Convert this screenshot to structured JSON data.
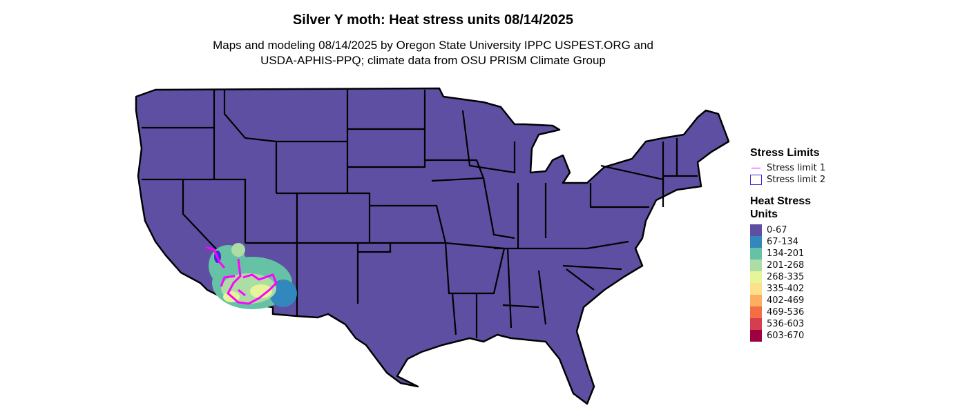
{
  "title": "Silver Y moth: Heat stress units 08/14/2025",
  "subtitle_lines": [
    "Maps and modeling 08/14/2025 by Oregon State University IPPC USPEST.ORG and",
    "USDA-APHIS-PPQ; climate data from OSU PRISM Climate Group"
  ],
  "legend": {
    "stress_limits_title": "Stress Limits",
    "stress_limits": [
      {
        "label": "Stress limit 1",
        "color": "#ff00ff",
        "symbol": "line"
      },
      {
        "label": "Stress limit 2",
        "color": "#3a2bd8",
        "symbol": "box"
      }
    ],
    "heat_title_lines": [
      "Heat Stress",
      "Units"
    ],
    "classes": [
      {
        "label": "0-67",
        "color": "#5e4fa2"
      },
      {
        "label": "67-134",
        "color": "#3288bd"
      },
      {
        "label": "134-201",
        "color": "#66c2a5"
      },
      {
        "label": "201-268",
        "color": "#abdda4"
      },
      {
        "label": "268-335",
        "color": "#e6f598"
      },
      {
        "label": "335-402",
        "color": "#fee08b"
      },
      {
        "label": "402-469",
        "color": "#fdae61"
      },
      {
        "label": "469-536",
        "color": "#f46d43"
      },
      {
        "label": "536-603",
        "color": "#d53e4f"
      },
      {
        "label": "603-670",
        "color": "#9e0142"
      }
    ]
  }
}
